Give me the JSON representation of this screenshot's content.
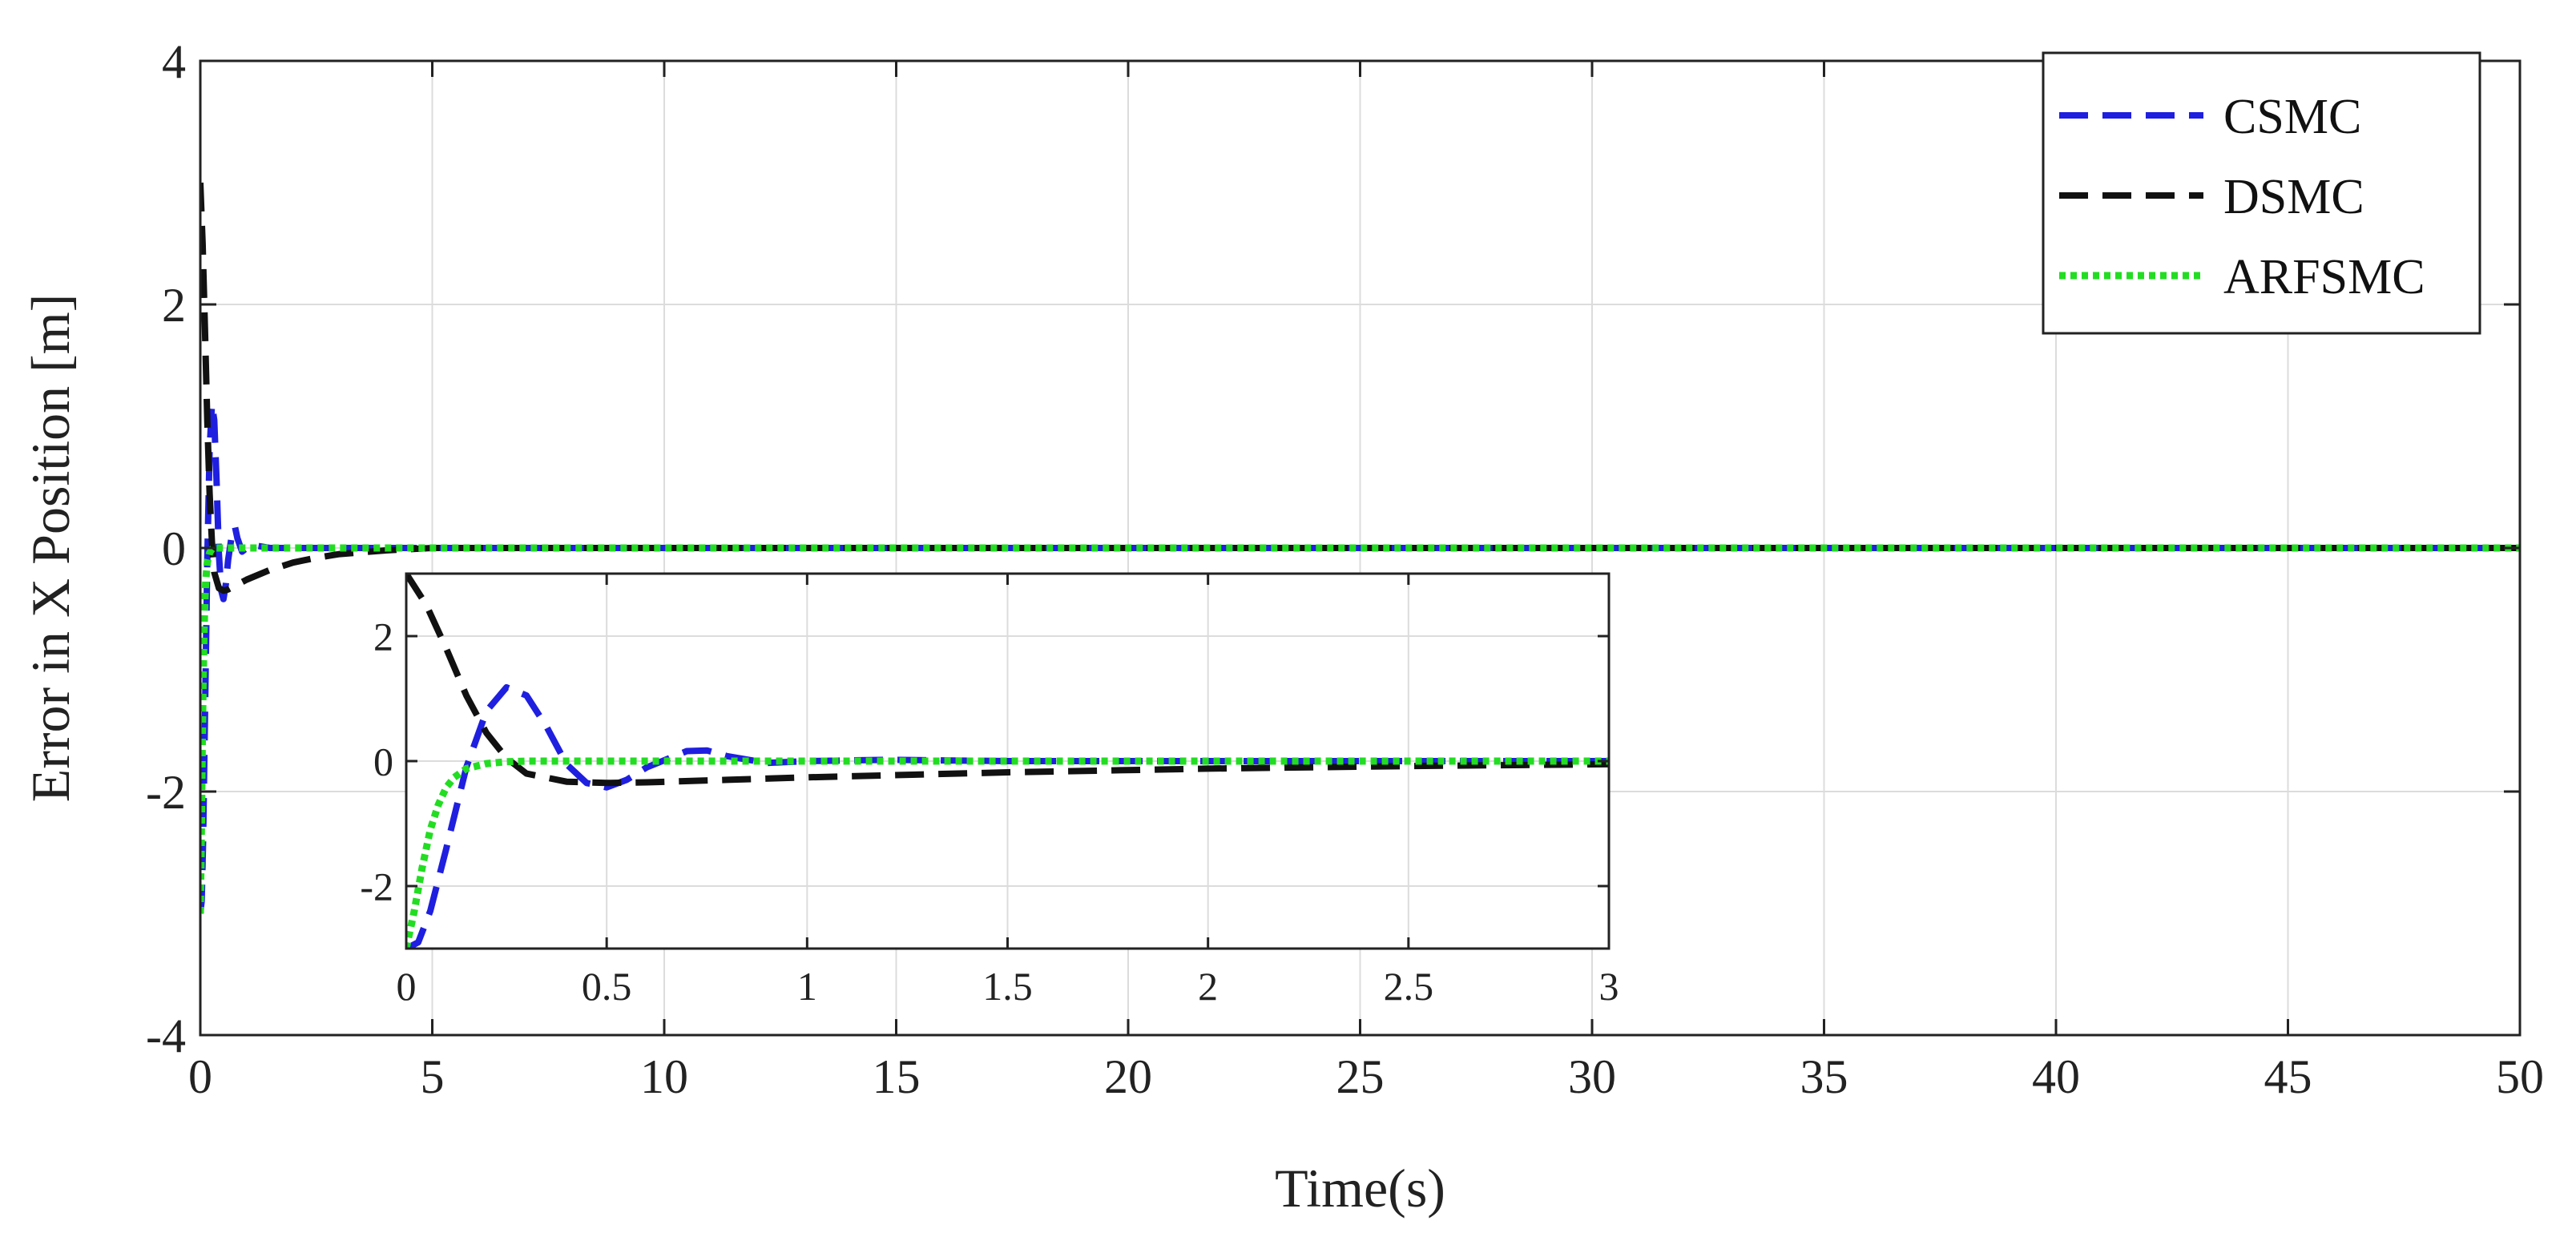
{
  "chart_data": [
    {
      "type": "line",
      "xlabel": "Time(s)",
      "ylabel": "Error in X Position [m]",
      "xlim": [
        0,
        50
      ],
      "ylim": [
        -4,
        4
      ],
      "x_ticks": [
        "0",
        "5",
        "10",
        "15",
        "20",
        "25",
        "30",
        "35",
        "40",
        "45",
        "50"
      ],
      "y_ticks": [
        "-4",
        "-2",
        "0",
        "2",
        "4"
      ],
      "grid": true,
      "legend_position": "top-right",
      "series": [
        {
          "name": "CSMC",
          "style": "dashed",
          "color": "#1f1fe0",
          "x": [
            0,
            0.03,
            0.06,
            0.1,
            0.15,
            0.2,
            0.25,
            0.3,
            0.35,
            0.4,
            0.45,
            0.5,
            0.55,
            0.6,
            0.7,
            0.75,
            0.8,
            0.9,
            1.0,
            1.2,
            1.5,
            2,
            3,
            5,
            50
          ],
          "y": [
            -3,
            -2.9,
            -2.4,
            -1.4,
            -0.1,
            0.8,
            1.18,
            1.05,
            0.55,
            -0.05,
            -0.35,
            -0.42,
            -0.3,
            -0.1,
            0.16,
            0.17,
            0.08,
            -0.03,
            0.0,
            0.02,
            0,
            0,
            0,
            0,
            0
          ]
        },
        {
          "name": "DSMC",
          "style": "dashed",
          "color": "#111111",
          "x": [
            0,
            0.05,
            0.1,
            0.15,
            0.2,
            0.25,
            0.3,
            0.4,
            0.5,
            0.6,
            0.8,
            1.0,
            1.5,
            2,
            2.5,
            3,
            4,
            5,
            50
          ],
          "y": [
            3,
            2.5,
            1.8,
            1.05,
            0.45,
            0.05,
            -0.2,
            -0.33,
            -0.35,
            -0.34,
            -0.3,
            -0.26,
            -0.18,
            -0.12,
            -0.08,
            -0.05,
            -0.02,
            0,
            0
          ]
        },
        {
          "name": "ARFSMC",
          "style": "dotted",
          "color": "#22dd22",
          "x": [
            0,
            0.02,
            0.04,
            0.06,
            0.08,
            0.1,
            0.12,
            0.15,
            0.2,
            0.25,
            0.3,
            0.4,
            0.5,
            1,
            50
          ],
          "y": [
            -3,
            -2.4,
            -1.7,
            -1.1,
            -0.7,
            -0.42,
            -0.26,
            -0.12,
            -0.04,
            -0.01,
            0,
            0,
            0,
            0,
            0
          ]
        }
      ]
    },
    {
      "type": "line",
      "inset": true,
      "xlim": [
        0,
        3
      ],
      "ylim": [
        -3,
        3
      ],
      "x_ticks": [
        "0",
        "0.5",
        "1",
        "1.5",
        "2",
        "2.5",
        "3"
      ],
      "y_ticks": [
        "-2",
        "0",
        "2"
      ],
      "grid": true,
      "series": [
        {
          "name": "CSMC",
          "style": "dashed",
          "color": "#1f1fe0",
          "x": [
            0,
            0.03,
            0.06,
            0.1,
            0.15,
            0.2,
            0.25,
            0.3,
            0.35,
            0.4,
            0.45,
            0.5,
            0.55,
            0.6,
            0.7,
            0.75,
            0.8,
            0.9,
            1.0,
            1.2,
            1.5,
            2,
            3
          ],
          "y": [
            -3,
            -2.9,
            -2.4,
            -1.4,
            -0.1,
            0.8,
            1.18,
            1.05,
            0.55,
            -0.05,
            -0.35,
            -0.42,
            -0.3,
            -0.1,
            0.16,
            0.17,
            0.08,
            -0.03,
            0.0,
            0.02,
            0,
            0,
            0
          ]
        },
        {
          "name": "DSMC",
          "style": "dashed",
          "color": "#111111",
          "x": [
            0,
            0.05,
            0.1,
            0.15,
            0.2,
            0.25,
            0.3,
            0.4,
            0.5,
            0.6,
            0.8,
            1.0,
            1.5,
            2,
            2.5,
            3
          ],
          "y": [
            3,
            2.5,
            1.8,
            1.05,
            0.45,
            0.05,
            -0.2,
            -0.33,
            -0.35,
            -0.34,
            -0.3,
            -0.26,
            -0.18,
            -0.12,
            -0.08,
            -0.05
          ]
        },
        {
          "name": "ARFSMC",
          "style": "dotted",
          "color": "#22dd22",
          "x": [
            0,
            0.02,
            0.04,
            0.06,
            0.08,
            0.1,
            0.12,
            0.15,
            0.2,
            0.25,
            0.3,
            0.4,
            0.5,
            1,
            3
          ],
          "y": [
            -3,
            -2.4,
            -1.7,
            -1.1,
            -0.7,
            -0.42,
            -0.26,
            -0.12,
            -0.04,
            -0.01,
            0,
            0,
            0,
            0,
            0
          ]
        }
      ]
    }
  ]
}
